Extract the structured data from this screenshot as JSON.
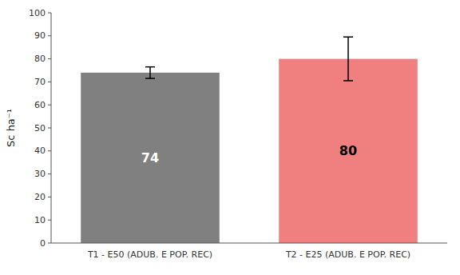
{
  "chart_data": {
    "type": "bar",
    "categories": [
      "T1 - E50 (ADUB. E POP. REC)",
      "T2 - E25 (ADUB. E POP. REC)"
    ],
    "values": [
      74,
      80
    ],
    "errors": [
      2.5,
      9.5
    ],
    "colors": [
      "#808080",
      "#F08080"
    ],
    "ylabel": "Sc ha⁻¹",
    "ylim": [
      0,
      100
    ],
    "yticks": [
      0,
      10,
      20,
      30,
      40,
      50,
      60,
      70,
      80,
      90,
      100
    ],
    "data_labels": true,
    "grid": false
  }
}
